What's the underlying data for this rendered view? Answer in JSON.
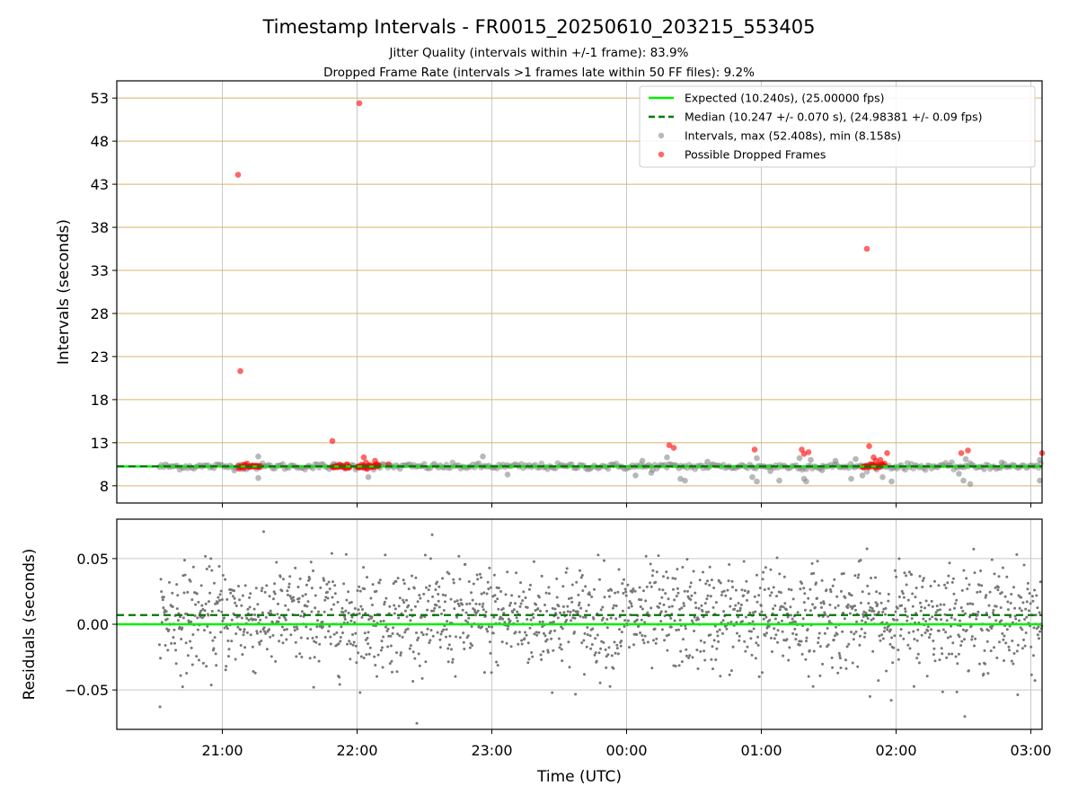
{
  "chart_data": [
    {
      "type": "scatter",
      "title": "Timestamp Intervals - FR0015_20250610_203215_553405",
      "subtitle": [
        "Jitter Quality (intervals within +/-1 frame): 83.9%",
        "Dropped Frame Rate (intervals >1 frames late within 50 FF files): 9.2%"
      ],
      "xlabel": "",
      "ylabel": "Intervals (seconds)",
      "x_is_time_utc": true,
      "xlim": [
        "20:13",
        "03:05"
      ],
      "ylim": [
        6,
        55
      ],
      "yticks": [
        8,
        13,
        18,
        23,
        28,
        33,
        38,
        43,
        48,
        53
      ],
      "ytick_labels": [
        "8",
        "13",
        "18",
        "23",
        "28",
        "33",
        "38",
        "43",
        "48",
        "53"
      ],
      "grid": "horizontal lines golden, vertical lines grey",
      "legend_placement": "top-right",
      "lines": [
        {
          "name": "Expected (10.240s), (25.00000 fps)",
          "y": 10.24,
          "color": "#00ee00",
          "style": "solid"
        },
        {
          "name": "Median (10.247 +/- 0.070 s), (24.98381 +/- 0.09 fps)",
          "y": 10.247,
          "color": "#007700",
          "style": "dashed"
        }
      ],
      "series": [
        {
          "name": "Intervals, max (52.408s), min (8.158s)",
          "color": "#888888",
          "band": {
            "start": "20:32",
            "end": "03:05",
            "center": 10.24,
            "spread": 0.08
          },
          "points": [
            {
              "t": "21:16",
              "y": 11.4
            },
            {
              "t": "21:16",
              "y": 8.9
            },
            {
              "t": "22:05",
              "y": 9.0
            },
            {
              "t": "22:56",
              "y": 11.4
            },
            {
              "t": "23:07",
              "y": 9.3
            },
            {
              "t": "00:04",
              "y": 9.2
            },
            {
              "t": "00:07",
              "y": 10.9
            },
            {
              "t": "00:11",
              "y": 9.5
            },
            {
              "t": "00:18",
              "y": 11.3
            },
            {
              "t": "00:24",
              "y": 8.8
            },
            {
              "t": "00:26",
              "y": 8.6
            },
            {
              "t": "00:36",
              "y": 10.8
            },
            {
              "t": "00:56",
              "y": 9.0
            },
            {
              "t": "00:58",
              "y": 8.5
            },
            {
              "t": "00:58",
              "y": 11.2
            },
            {
              "t": "01:04",
              "y": 9.7
            },
            {
              "t": "01:08",
              "y": 8.6
            },
            {
              "t": "01:17",
              "y": 11.2
            },
            {
              "t": "01:19",
              "y": 8.8
            },
            {
              "t": "01:20",
              "y": 8.5
            },
            {
              "t": "01:22",
              "y": 11.0
            },
            {
              "t": "01:27",
              "y": 9.8
            },
            {
              "t": "01:33",
              "y": 10.9
            },
            {
              "t": "01:40",
              "y": 8.8
            },
            {
              "t": "01:42",
              "y": 11.1
            },
            {
              "t": "01:45",
              "y": 9.2
            },
            {
              "t": "01:54",
              "y": 9.0
            },
            {
              "t": "01:58",
              "y": 8.5
            },
            {
              "t": "02:28",
              "y": 9.4
            },
            {
              "t": "02:30",
              "y": 8.6
            },
            {
              "t": "02:31",
              "y": 11.1
            },
            {
              "t": "02:33",
              "y": 8.2
            },
            {
              "t": "02:47",
              "y": 10.7
            },
            {
              "t": "03:04",
              "y": 8.6
            },
            {
              "t": "03:04",
              "y": 11.0
            }
          ]
        },
        {
          "name": "Possible Dropped Frames",
          "color": "#ff0000",
          "clusters": [
            {
              "start": "21:07",
              "end": "21:17",
              "y": 10.24
            },
            {
              "start": "21:49",
              "end": "21:57",
              "y": 10.24
            },
            {
              "start": "22:00",
              "end": "22:10",
              "y": 10.3
            },
            {
              "start": "01:45",
              "end": "01:55",
              "y": 10.3
            }
          ],
          "points": [
            {
              "t": "21:07",
              "y": 44.1
            },
            {
              "t": "21:08",
              "y": 21.3
            },
            {
              "t": "21:49",
              "y": 13.2
            },
            {
              "t": "22:01",
              "y": 52.4
            },
            {
              "t": "22:03",
              "y": 11.3
            },
            {
              "t": "22:04",
              "y": 10.7
            },
            {
              "t": "22:08",
              "y": 10.9
            },
            {
              "t": "22:14",
              "y": 10.5
            },
            {
              "t": "00:19",
              "y": 12.7
            },
            {
              "t": "00:21",
              "y": 12.4
            },
            {
              "t": "00:57",
              "y": 12.2
            },
            {
              "t": "01:18",
              "y": 12.2
            },
            {
              "t": "01:19",
              "y": 11.7
            },
            {
              "t": "01:21",
              "y": 11.9
            },
            {
              "t": "01:47",
              "y": 35.5
            },
            {
              "t": "01:48",
              "y": 12.6
            },
            {
              "t": "01:50",
              "y": 11.3
            },
            {
              "t": "01:51",
              "y": 10.9
            },
            {
              "t": "01:53",
              "y": 11.0
            },
            {
              "t": "01:56",
              "y": 11.8
            },
            {
              "t": "02:29",
              "y": 11.8
            },
            {
              "t": "02:32",
              "y": 12.1
            },
            {
              "t": "03:05",
              "y": 11.8
            }
          ]
        }
      ]
    },
    {
      "type": "scatter",
      "title": "",
      "xlabel": "Time (UTC)",
      "ylabel": "Residuals (seconds)",
      "xlim": [
        "20:13",
        "03:05"
      ],
      "xticks": [
        "21:00",
        "22:00",
        "23:00",
        "00:00",
        "01:00",
        "02:00",
        "03:00"
      ],
      "ylim": [
        -0.08,
        0.08
      ],
      "yticks": [
        -0.05,
        0.0,
        0.05
      ],
      "ytick_labels": [
        "−0.05",
        "0.00",
        "0.05"
      ],
      "grid": true,
      "lines": [
        {
          "y": 0.0,
          "color": "#00ee00",
          "style": "solid"
        },
        {
          "y": 0.007,
          "color": "#007700",
          "style": "dashed"
        }
      ],
      "series": [
        {
          "name": "Residuals",
          "color": "#777777",
          "band": {
            "start": "20:32",
            "end": "03:05",
            "center": 0.005,
            "spread": 0.02,
            "max_abs": 0.08
          }
        }
      ]
    }
  ]
}
